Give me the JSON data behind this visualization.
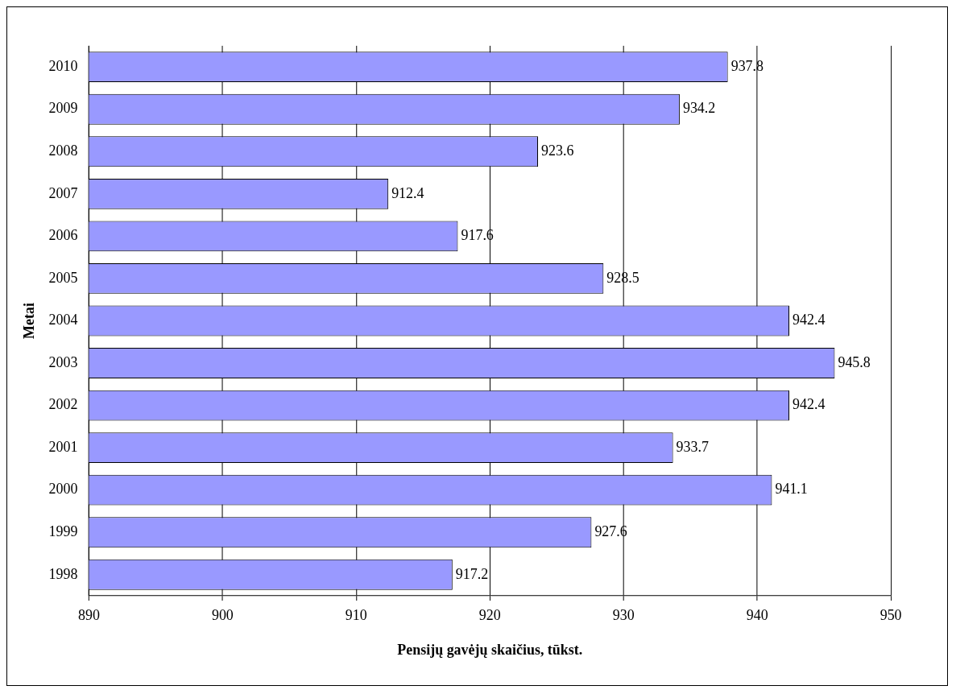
{
  "chart_data": {
    "type": "bar",
    "orientation": "horizontal",
    "xlabel": "Pensijų gavėjų skaičius, tūkst.",
    "ylabel": "Metai",
    "categories": [
      "2010",
      "2009",
      "2008",
      "2007",
      "2006",
      "2005",
      "2004",
      "2003",
      "2002",
      "2001",
      "2000",
      "1999",
      "1998"
    ],
    "values": [
      937.8,
      934.2,
      923.6,
      912.4,
      917.6,
      928.5,
      942.4,
      945.8,
      942.4,
      933.7,
      941.1,
      927.6,
      917.2
    ],
    "color": "#9999ff",
    "xlim": [
      890,
      950
    ],
    "xticks": [
      890,
      900,
      910,
      920,
      930,
      940,
      950
    ],
    "grid": "x",
    "data_labels": true,
    "legend": false
  }
}
